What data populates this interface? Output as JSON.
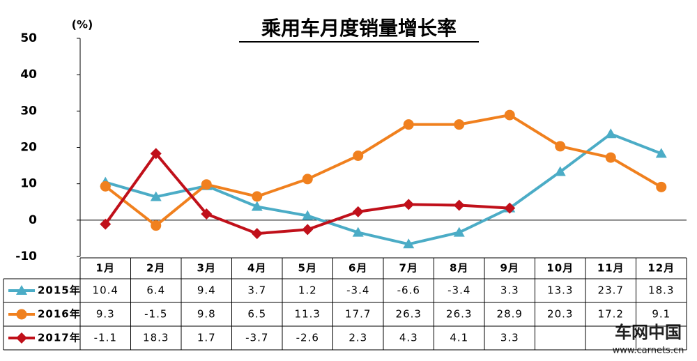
{
  "chart_data": {
    "type": "line",
    "title": "乘用车月度销量增长率",
    "y_unit": "(%)",
    "categories": [
      "1月",
      "2月",
      "3月",
      "4月",
      "5月",
      "6月",
      "7月",
      "8月",
      "9月",
      "10月",
      "11月",
      "12月"
    ],
    "series": [
      {
        "name": "2015年",
        "color": "#4bacc6",
        "marker": "triangle",
        "values": [
          10.4,
          6.4,
          9.4,
          3.7,
          1.2,
          -3.4,
          -6.6,
          -3.4,
          3.3,
          13.3,
          23.7,
          18.3
        ]
      },
      {
        "name": "2016年",
        "color": "#f0801e",
        "marker": "circle",
        "values": [
          9.3,
          -1.5,
          9.8,
          6.5,
          11.3,
          17.7,
          26.3,
          26.3,
          28.9,
          20.3,
          17.2,
          9.1
        ]
      },
      {
        "name": "2017年",
        "color": "#c0101a",
        "marker": "diamond",
        "values": [
          -1.1,
          18.3,
          1.7,
          -3.7,
          -2.6,
          2.3,
          4.3,
          4.1,
          3.3,
          null,
          null,
          null
        ]
      }
    ],
    "ylim": [
      -10,
      50
    ],
    "yticks": [
      -10,
      0,
      10,
      20,
      30,
      40,
      50
    ],
    "grid": false,
    "watermark": "车网中国",
    "watermark_url": "www.carnets.cn"
  }
}
